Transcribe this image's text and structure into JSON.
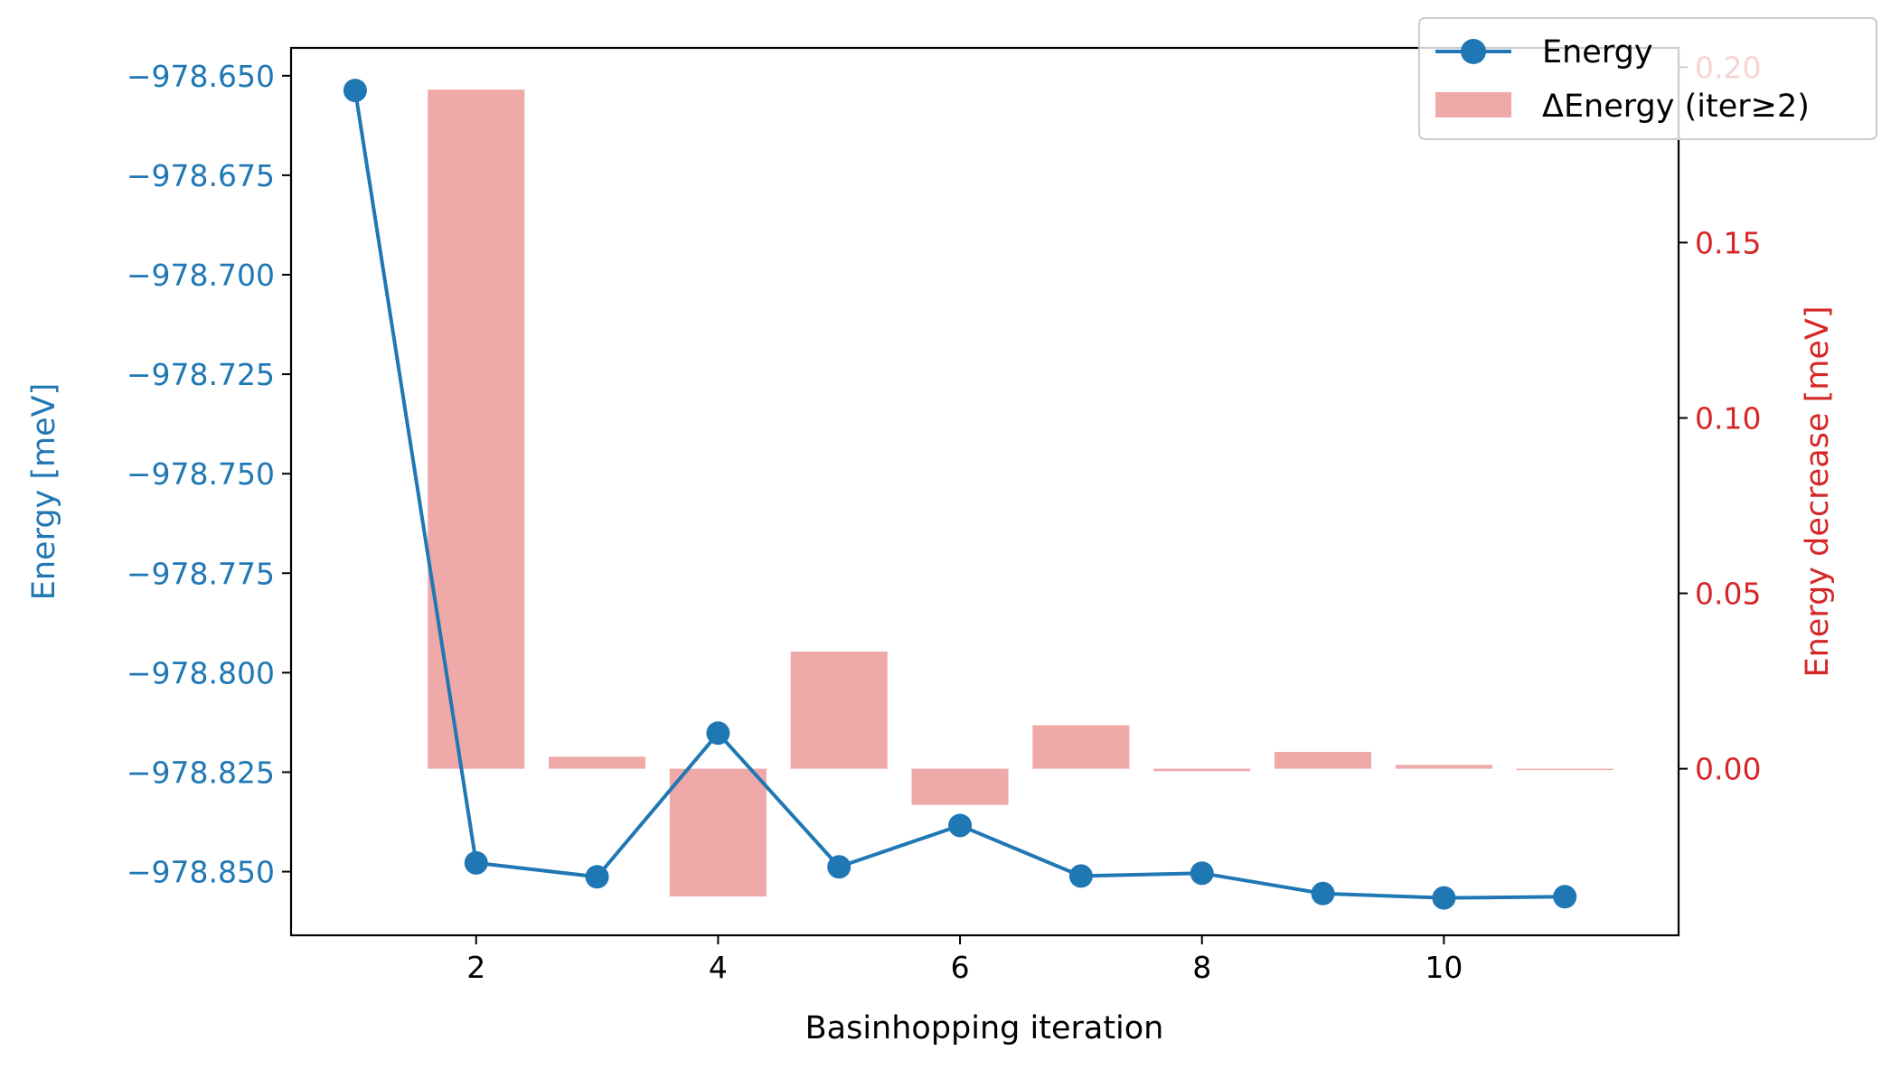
{
  "chart_data": {
    "type": "line",
    "xlabel": "Basinhopping iteration",
    "ylabel_left": "Energy [meV]",
    "ylabel_right": "Energy decrease [meV]",
    "xlim": [
      0.47,
      11.94
    ],
    "ylim_left": [
      -978.866,
      -978.643
    ],
    "ylim_right": [
      -0.0475,
      0.2055
    ],
    "x_ticks": [
      2,
      4,
      6,
      8,
      10
    ],
    "y_ticks_left": [
      -978.65,
      -978.675,
      -978.7,
      -978.725,
      -978.75,
      -978.775,
      -978.8,
      -978.825,
      -978.85
    ],
    "y_tick_labels_left": [
      "−978.650",
      "−978.675",
      "−978.700",
      "−978.725",
      "−978.750",
      "−978.775",
      "−978.800",
      "−978.825",
      "−978.850"
    ],
    "y_ticks_right": [
      0.0,
      0.05,
      0.1,
      0.15,
      0.2
    ],
    "y_tick_labels_right": [
      "0.00",
      "0.05",
      "0.10",
      "0.15",
      "0.20"
    ],
    "legend_position": "top-right",
    "grid": false,
    "series": [
      {
        "name": "Energy",
        "kind": "line",
        "axis": "left",
        "color": "#1f77b4",
        "x": [
          1,
          2,
          3,
          4,
          5,
          6,
          7,
          8,
          9,
          10,
          11
        ],
        "y": [
          -978.6537,
          -978.8478,
          -978.8513,
          -978.8152,
          -978.8488,
          -978.8384,
          -978.8511,
          -978.8504,
          -978.8555,
          -978.8566,
          -978.8563
        ]
      },
      {
        "name": "ΔEnergy (iter≥2)",
        "kind": "bar",
        "axis": "right",
        "color": "#d62728",
        "alpha": 0.4,
        "bar_width": 0.8,
        "x": [
          2,
          3,
          4,
          5,
          6,
          7,
          8,
          9,
          10,
          11
        ],
        "y": [
          0.1936,
          0.0034,
          -0.0364,
          0.0334,
          -0.0103,
          0.0124,
          -0.0007,
          0.0048,
          0.0011,
          -0.0003
        ]
      }
    ],
    "colors": {
      "left_axis": "#1f77b4",
      "right_axis": "#d62728",
      "text": "#000000"
    }
  }
}
